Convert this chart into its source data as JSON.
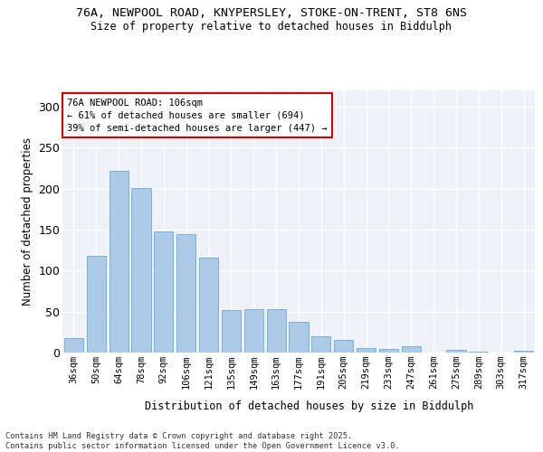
{
  "title": "76A, NEWPOOL ROAD, KNYPERSLEY, STOKE-ON-TRENT, ST8 6NS",
  "subtitle": "Size of property relative to detached houses in Biddulph",
  "xlabel": "Distribution of detached houses by size in Biddulph",
  "ylabel": "Number of detached properties",
  "categories": [
    "36sqm",
    "50sqm",
    "64sqm",
    "78sqm",
    "92sqm",
    "106sqm",
    "121sqm",
    "135sqm",
    "149sqm",
    "163sqm",
    "177sqm",
    "191sqm",
    "205sqm",
    "219sqm",
    "233sqm",
    "247sqm",
    "261sqm",
    "275sqm",
    "289sqm",
    "303sqm",
    "317sqm"
  ],
  "values": [
    18,
    118,
    222,
    201,
    148,
    145,
    116,
    52,
    53,
    53,
    38,
    20,
    16,
    5,
    4,
    8,
    0,
    3,
    1,
    0,
    2
  ],
  "bar_color": "#adc9e8",
  "bar_edge_color": "#6aaad4",
  "annotation_text_line1": "76A NEWPOOL ROAD: 106sqm",
  "annotation_text_line2": "← 61% of detached houses are smaller (694)",
  "annotation_text_line3": "39% of semi-detached houses are larger (447) →",
  "annotation_box_color": "#ffffff",
  "annotation_box_edge_color": "#cc0000",
  "ylim": [
    0,
    320
  ],
  "yticks": [
    0,
    50,
    100,
    150,
    200,
    250,
    300
  ],
  "bg_color": "#eef2f7",
  "footer_line1": "Contains HM Land Registry data © Crown copyright and database right 2025.",
  "footer_line2": "Contains public sector information licensed under the Open Government Licence v3.0."
}
